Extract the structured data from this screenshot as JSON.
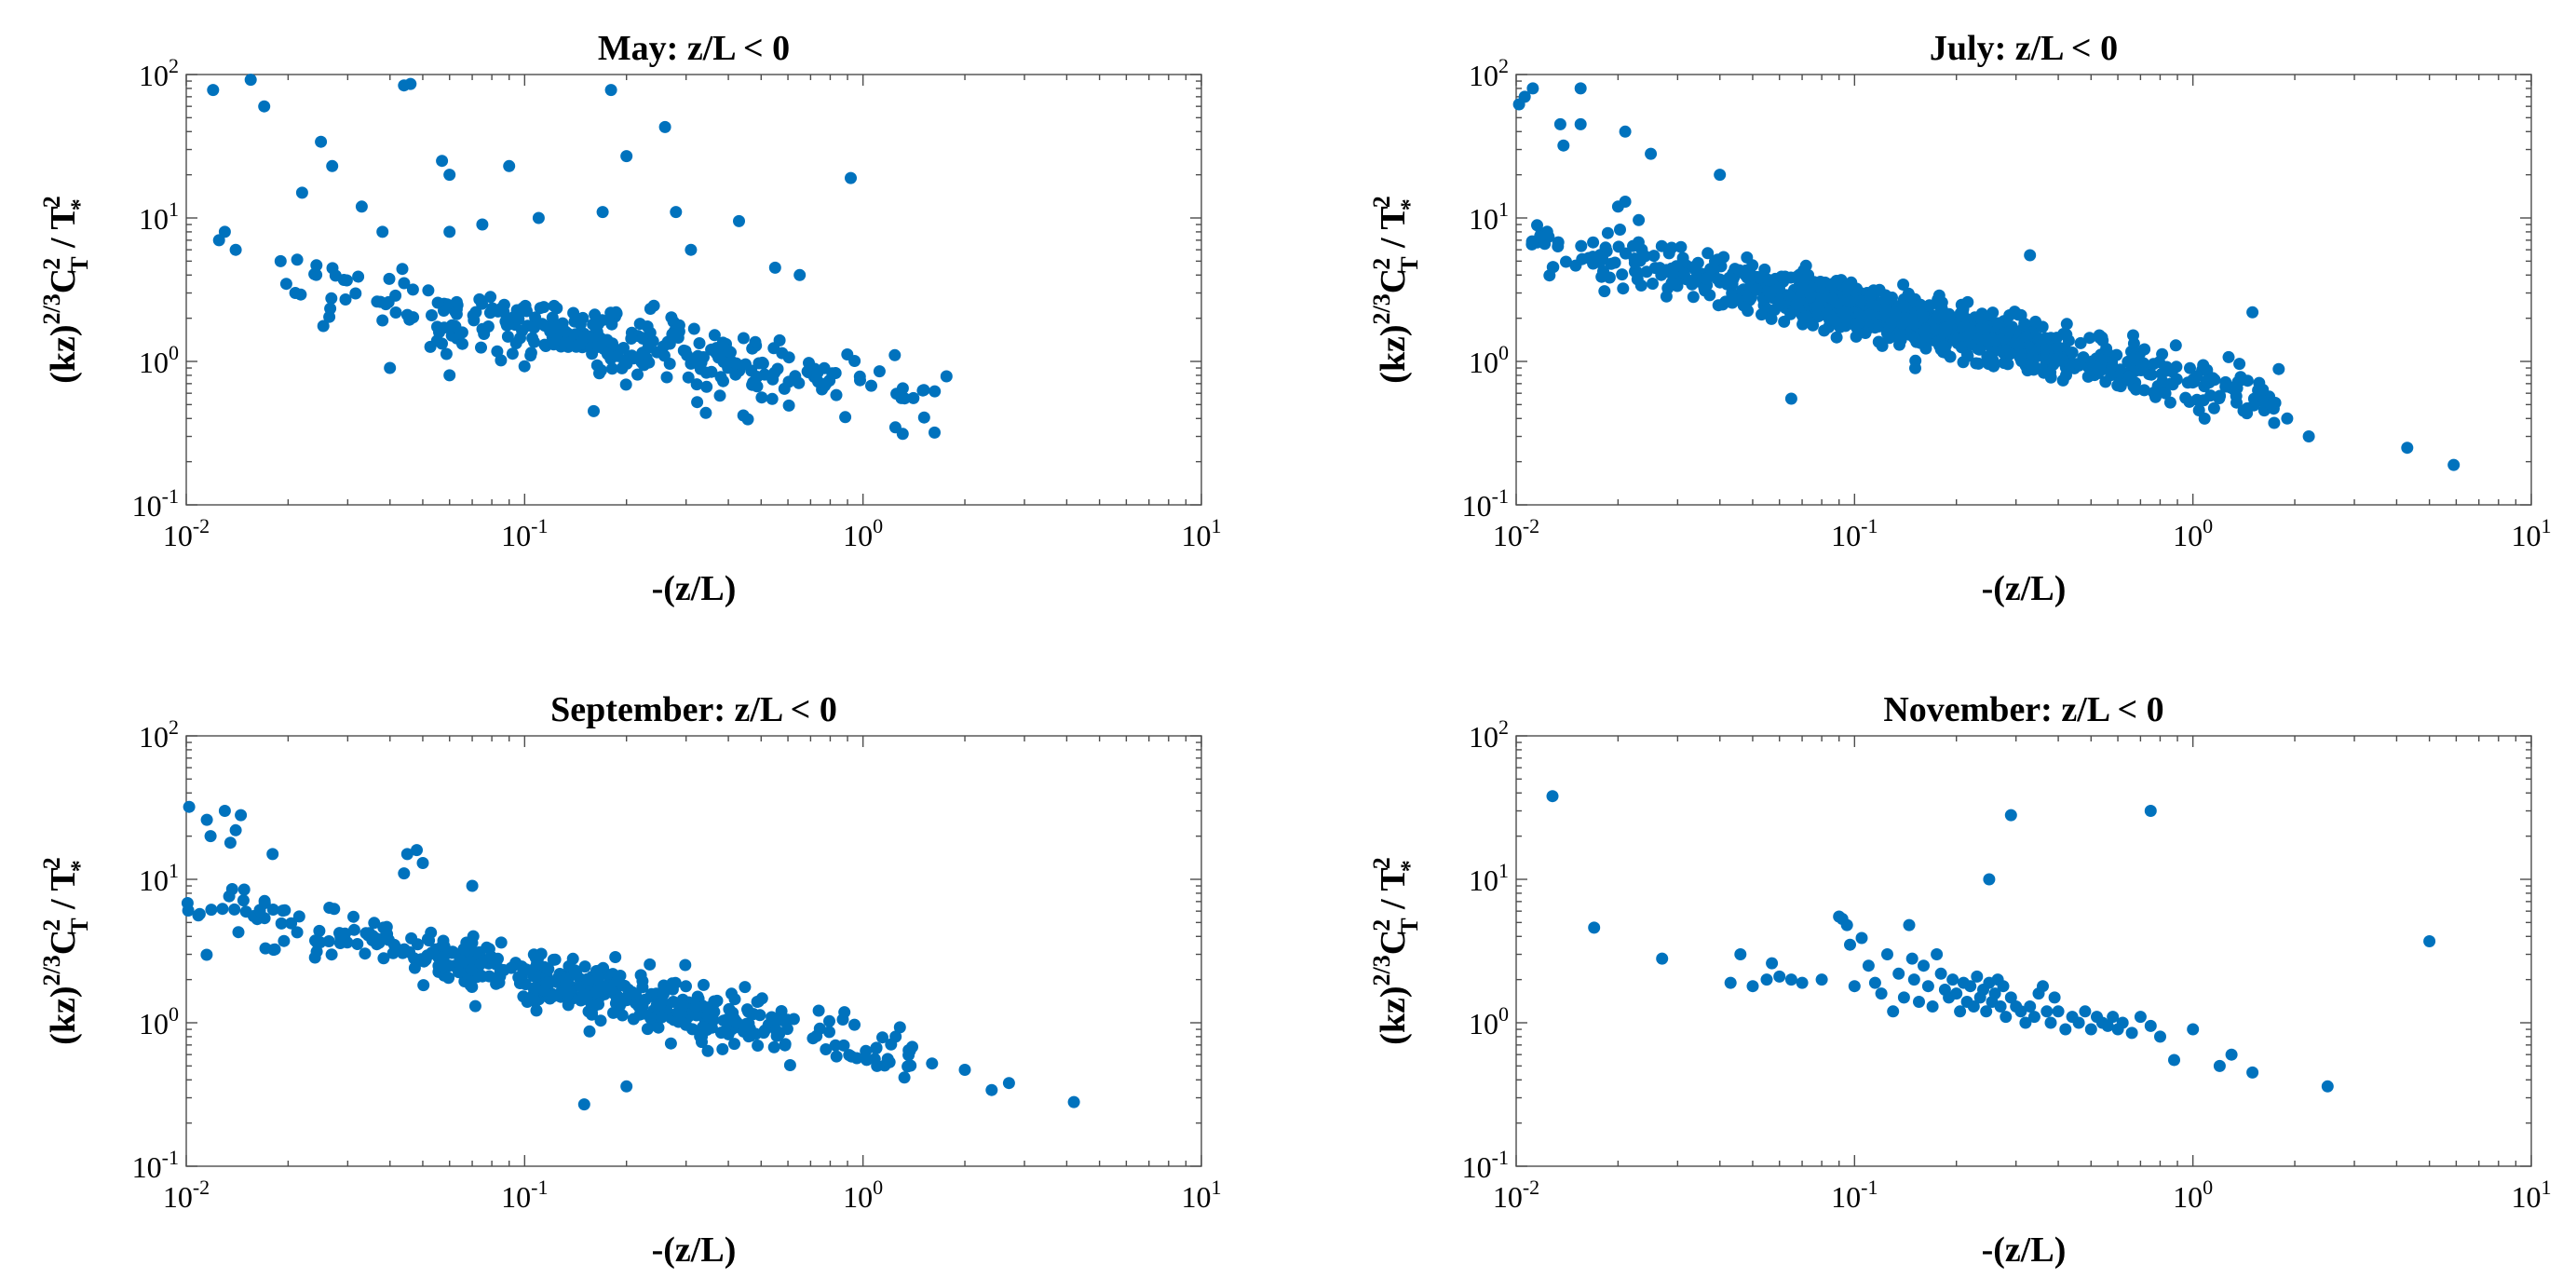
{
  "chart_data": [
    {
      "type": "scatter",
      "title": "May: z/L < 0",
      "xlabel": "-(z/L)",
      "ylabel": {
        "base": "(kz)",
        "exp1": "2/3",
        "c": "C",
        "c_sub": "T",
        "c_sup": "2",
        "sep": " / T",
        "t_sub": "*",
        "t_sup": "2"
      },
      "xscale": "log",
      "yscale": "log",
      "xlim": [
        0.01,
        10
      ],
      "ylim": [
        0.1,
        100
      ],
      "xticks": [
        {
          "base": "10",
          "exp": "-2"
        },
        {
          "base": "10",
          "exp": "-1"
        },
        {
          "base": "10",
          "exp": "0"
        },
        {
          "base": "10",
          "exp": "1"
        }
      ],
      "yticks": [
        {
          "base": "10",
          "exp": "-1"
        },
        {
          "base": "10",
          "exp": "0"
        },
        {
          "base": "10",
          "exp": "1"
        },
        {
          "base": "10",
          "exp": "2"
        }
      ],
      "color": "#0072bd",
      "series": [
        {
          "name": "May",
          "outliers": [
            [
              0.012,
              78
            ],
            [
              0.0155,
              92
            ],
            [
              0.017,
              60
            ],
            [
              0.044,
              84
            ],
            [
              0.046,
              86
            ],
            [
              0.18,
              78
            ],
            [
              0.26,
              43
            ],
            [
              0.92,
              19
            ],
            [
              0.025,
              34
            ],
            [
              0.027,
              23
            ],
            [
              0.022,
              15
            ],
            [
              0.033,
              12
            ],
            [
              0.057,
              25
            ],
            [
              0.06,
              20
            ],
            [
              0.09,
              23
            ],
            [
              0.038,
              8
            ],
            [
              0.06,
              8
            ],
            [
              0.075,
              9
            ],
            [
              0.11,
              10
            ],
            [
              0.17,
              11
            ],
            [
              0.2,
              27
            ],
            [
              0.28,
              11
            ],
            [
              0.43,
              9.5
            ],
            [
              0.55,
              4.5
            ],
            [
              0.65,
              4
            ],
            [
              0.31,
              6
            ],
            [
              0.06,
              0.8
            ],
            [
              0.04,
              0.9
            ],
            [
              0.16,
              0.45
            ],
            [
              0.013,
              8
            ],
            [
              0.0125,
              7
            ],
            [
              0.014,
              6
            ],
            [
              0.019,
              5
            ],
            [
              0.021,
              3
            ]
          ]
        }
      ]
    },
    {
      "type": "scatter",
      "title": "July: z/L < 0",
      "xlabel": "-(z/L)",
      "ylabel": {
        "base": "(kz)",
        "exp1": "2/3",
        "c": "C",
        "c_sub": "T",
        "c_sup": "2",
        "sep": " / T",
        "t_sub": "*",
        "t_sup": "2"
      },
      "xscale": "log",
      "yscale": "log",
      "xlim": [
        0.01,
        10
      ],
      "ylim": [
        0.1,
        100
      ],
      "xticks": [
        {
          "base": "10",
          "exp": "-2"
        },
        {
          "base": "10",
          "exp": "-1"
        },
        {
          "base": "10",
          "exp": "0"
        },
        {
          "base": "10",
          "exp": "1"
        }
      ],
      "yticks": [
        {
          "base": "10",
          "exp": "-1"
        },
        {
          "base": "10",
          "exp": "0"
        },
        {
          "base": "10",
          "exp": "1"
        },
        {
          "base": "10",
          "exp": "2"
        }
      ],
      "color": "#0072bd",
      "series": [
        {
          "name": "July",
          "outliers": [
            [
              0.0102,
              62
            ],
            [
              0.0106,
              70
            ],
            [
              0.0112,
              80
            ],
            [
              0.0155,
              80
            ],
            [
              0.0135,
              45
            ],
            [
              0.0155,
              45
            ],
            [
              0.0138,
              32
            ],
            [
              0.021,
              40
            ],
            [
              0.025,
              28
            ],
            [
              0.04,
              20
            ],
            [
              0.02,
              12
            ],
            [
              0.021,
              13
            ],
            [
              0.33,
              5.5
            ],
            [
              0.065,
              0.55
            ],
            [
              1.5,
              2.2
            ],
            [
              4.3,
              0.25
            ],
            [
              5.9,
              0.19
            ],
            [
              1.9,
              0.4
            ],
            [
              2.2,
              0.3
            ],
            [
              1.7,
              0.5
            ]
          ]
        }
      ]
    },
    {
      "type": "scatter",
      "title": "September: z/L < 0",
      "xlabel": "-(z/L)",
      "ylabel": {
        "base": "(kz)",
        "exp1": "2/3",
        "c": "C",
        "c_sub": "T",
        "c_sup": "2",
        "sep": " / T",
        "t_sub": "*",
        "t_sup": "2"
      },
      "xscale": "log",
      "yscale": "log",
      "xlim": [
        0.01,
        10
      ],
      "ylim": [
        0.1,
        100
      ],
      "xticks": [
        {
          "base": "10",
          "exp": "-2"
        },
        {
          "base": "10",
          "exp": "-1"
        },
        {
          "base": "10",
          "exp": "0"
        },
        {
          "base": "10",
          "exp": "1"
        }
      ],
      "yticks": [
        {
          "base": "10",
          "exp": "-1"
        },
        {
          "base": "10",
          "exp": "0"
        },
        {
          "base": "10",
          "exp": "1"
        },
        {
          "base": "10",
          "exp": "2"
        }
      ],
      "color": "#0072bd",
      "series": [
        {
          "name": "September",
          "outliers": [
            [
              0.0102,
              32
            ],
            [
              0.0115,
              26
            ],
            [
              0.013,
              30
            ],
            [
              0.0145,
              28
            ],
            [
              0.0118,
              20
            ],
            [
              0.0135,
              18
            ],
            [
              0.014,
              22
            ],
            [
              0.018,
              15
            ],
            [
              0.045,
              15
            ],
            [
              0.048,
              16
            ],
            [
              0.05,
              13
            ],
            [
              0.07,
              9
            ],
            [
              0.044,
              11
            ],
            [
              0.15,
              0.27
            ],
            [
              0.2,
              0.36
            ],
            [
              2.4,
              0.34
            ],
            [
              2.7,
              0.38
            ],
            [
              4.2,
              0.28
            ],
            [
              1.6,
              0.52
            ],
            [
              2.0,
              0.47
            ],
            [
              1.1,
              0.5
            ]
          ]
        }
      ]
    },
    {
      "type": "scatter",
      "title": "November: z/L < 0",
      "xlabel": "-(z/L)",
      "ylabel": {
        "base": "(kz)",
        "exp1": "2/3",
        "c": "C",
        "c_sub": "T",
        "c_sup": "2",
        "sep": " / T",
        "t_sub": "*",
        "t_sup": "2"
      },
      "xscale": "log",
      "yscale": "log",
      "xlim": [
        0.01,
        10
      ],
      "ylim": [
        0.1,
        100
      ],
      "xticks": [
        {
          "base": "10",
          "exp": "-2"
        },
        {
          "base": "10",
          "exp": "-1"
        },
        {
          "base": "10",
          "exp": "0"
        },
        {
          "base": "10",
          "exp": "1"
        }
      ],
      "yticks": [
        {
          "base": "10",
          "exp": "-1"
        },
        {
          "base": "10",
          "exp": "0"
        },
        {
          "base": "10",
          "exp": "1"
        },
        {
          "base": "10",
          "exp": "2"
        }
      ],
      "color": "#0072bd",
      "series": [
        {
          "name": "November",
          "points": [
            [
              0.0128,
              38
            ],
            [
              0.29,
              28
            ],
            [
              0.75,
              30
            ],
            [
              0.25,
              10
            ],
            [
              0.017,
              4.6
            ],
            [
              0.027,
              2.8
            ],
            [
              5,
              3.7
            ],
            [
              0.043,
              1.9
            ],
            [
              0.046,
              3.0
            ],
            [
              0.05,
              1.8
            ],
            [
              0.055,
              2.0
            ],
            [
              0.057,
              2.6
            ],
            [
              0.06,
              2.1
            ],
            [
              0.065,
              2.0
            ],
            [
              0.07,
              1.9
            ],
            [
              0.08,
              2.0
            ],
            [
              0.09,
              5.5
            ],
            [
              0.092,
              5.3
            ],
            [
              0.095,
              4.8
            ],
            [
              0.097,
              3.5
            ],
            [
              0.1,
              1.8
            ],
            [
              0.105,
              3.9
            ],
            [
              0.11,
              2.5
            ],
            [
              0.115,
              1.9
            ],
            [
              0.12,
              1.6
            ],
            [
              0.125,
              3.0
            ],
            [
              0.13,
              1.2
            ],
            [
              0.135,
              2.2
            ],
            [
              0.14,
              1.5
            ],
            [
              0.145,
              4.8
            ],
            [
              0.148,
              2.8
            ],
            [
              0.15,
              2.0
            ],
            [
              0.155,
              1.4
            ],
            [
              0.16,
              2.5
            ],
            [
              0.165,
              1.8
            ],
            [
              0.17,
              1.3
            ],
            [
              0.175,
              3.0
            ],
            [
              0.18,
              2.2
            ],
            [
              0.185,
              1.7
            ],
            [
              0.19,
              1.5
            ],
            [
              0.195,
              2.0
            ],
            [
              0.2,
              1.6
            ],
            [
              0.205,
              1.2
            ],
            [
              0.21,
              1.9
            ],
            [
              0.215,
              1.4
            ],
            [
              0.22,
              1.8
            ],
            [
              0.225,
              1.3
            ],
            [
              0.23,
              2.1
            ],
            [
              0.235,
              1.5
            ],
            [
              0.24,
              1.7
            ],
            [
              0.245,
              1.2
            ],
            [
              0.25,
              1.9
            ],
            [
              0.255,
              1.4
            ],
            [
              0.26,
              1.6
            ],
            [
              0.265,
              2.0
            ],
            [
              0.27,
              1.3
            ],
            [
              0.275,
              1.8
            ],
            [
              0.28,
              1.1
            ],
            [
              0.29,
              1.5
            ],
            [
              0.3,
              1.3
            ],
            [
              0.31,
              1.2
            ],
            [
              0.32,
              1.0
            ],
            [
              0.33,
              1.3
            ],
            [
              0.34,
              1.1
            ],
            [
              0.35,
              1.6
            ],
            [
              0.36,
              1.8
            ],
            [
              0.37,
              1.2
            ],
            [
              0.38,
              1.0
            ],
            [
              0.39,
              1.5
            ],
            [
              0.4,
              1.2
            ],
            [
              0.42,
              0.9
            ],
            [
              0.44,
              1.1
            ],
            [
              0.46,
              1.0
            ],
            [
              0.48,
              1.2
            ],
            [
              0.5,
              0.9
            ],
            [
              0.52,
              1.1
            ],
            [
              0.54,
              1.0
            ],
            [
              0.56,
              0.95
            ],
            [
              0.58,
              1.1
            ],
            [
              0.6,
              0.9
            ],
            [
              0.62,
              1.0
            ],
            [
              0.66,
              0.85
            ],
            [
              0.7,
              1.1
            ],
            [
              0.75,
              0.95
            ],
            [
              0.8,
              0.8
            ],
            [
              0.88,
              0.55
            ],
            [
              1.0,
              0.9
            ],
            [
              1.2,
              0.5
            ],
            [
              1.3,
              0.6
            ],
            [
              1.5,
              0.45
            ],
            [
              2.5,
              0.36
            ]
          ]
        }
      ]
    }
  ]
}
